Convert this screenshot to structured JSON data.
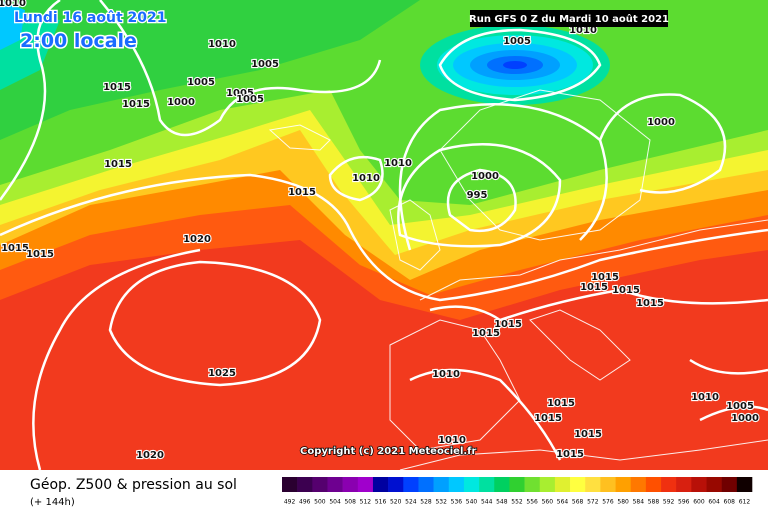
{
  "header": {
    "date": "Lundi 16 août 2021",
    "time": "2:00 locale",
    "run": "Run GFS 0 Z du Mardi 10 août 2021"
  },
  "isobar_labels": [
    "1010",
    "1015",
    "1015",
    "1010",
    "1005",
    "1005",
    "1000",
    "1005",
    "1005",
    "1010",
    "1000",
    "1005",
    "1010",
    "1010",
    "1000",
    "995",
    "1015",
    "1015",
    "1020",
    "1015",
    "1015",
    "1015",
    "1015",
    "1015",
    "1015",
    "1015",
    "1015",
    "1010",
    "1025",
    "1015",
    "1015",
    "1015",
    "1015",
    "1010",
    "1020",
    "1010",
    "1005",
    "1000"
  ],
  "copyright": "Copyright (c) 2021 Meteociel.fr",
  "footer": {
    "title": "Géop. Z500 & pression au sol",
    "lead": "(+ 144h)"
  },
  "scale": {
    "labels": [
      492,
      496,
      500,
      504,
      508,
      512,
      516,
      520,
      524,
      528,
      532,
      536,
      540,
      544,
      548,
      552,
      556,
      560,
      564,
      568,
      572,
      576,
      580,
      584,
      588,
      592,
      596,
      600,
      604,
      608,
      612
    ],
    "colors": [
      "#2a0030",
      "#3c0050",
      "#55006e",
      "#6e0090",
      "#8a00b0",
      "#a000cc",
      "#0000a0",
      "#0010d0",
      "#0040ff",
      "#0070ff",
      "#00a0ff",
      "#00c8ff",
      "#00e8e0",
      "#00e0a0",
      "#00d060",
      "#30d030",
      "#70e030",
      "#a8ee30",
      "#e0f030",
      "#ffff40",
      "#ffe040",
      "#ffc020",
      "#ffa000",
      "#ff7800",
      "#ff5000",
      "#f03010",
      "#d82010",
      "#b81008",
      "#980800",
      "#700000",
      "#100000"
    ]
  }
}
